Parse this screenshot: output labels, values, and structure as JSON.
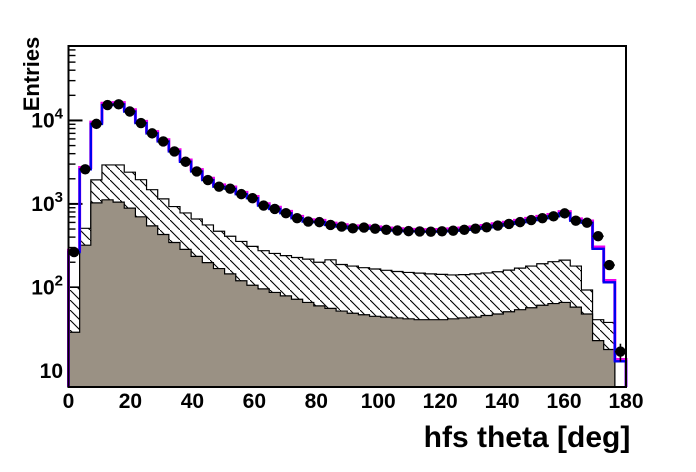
{
  "chart_data": {
    "type": "line",
    "subtype": "step-histogram-with-points-log-y",
    "title": "",
    "xlabel": "hfs theta [deg]",
    "ylabel": "Entries",
    "xaxis": {
      "range": [
        0,
        180
      ],
      "ticks": [
        0,
        20,
        40,
        60,
        80,
        100,
        120,
        140,
        160,
        180
      ]
    },
    "yaxis": {
      "scale": "log",
      "range": [
        6.4,
        78000
      ],
      "major_ticks": [
        10,
        100,
        1000,
        10000
      ]
    },
    "bins": {
      "count": 50,
      "xmin": 0,
      "xmax": 180,
      "width_deg": 3.6
    },
    "legend": "none",
    "background": "#ffffff",
    "series": [
      {
        "name": "data",
        "style": "points",
        "marker": "filled-circle",
        "color": "#000000",
        "errors": "poisson",
        "values": [
          265,
          2600,
          9100,
          15300,
          15600,
          12800,
          9300,
          7000,
          5600,
          4250,
          3200,
          2450,
          1930,
          1610,
          1520,
          1310,
          1170,
          955,
          870,
          775,
          675,
          615,
          605,
          560,
          535,
          510,
          520,
          505,
          490,
          480,
          472,
          468,
          465,
          470,
          478,
          490,
          505,
          525,
          550,
          575,
          605,
          640,
          675,
          710,
          770,
          630,
          595,
          410,
          185,
          17
        ]
      },
      {
        "name": "total-mc",
        "style": "step-line",
        "color": "#0000f0",
        "values": [
          265,
          2600,
          9100,
          15300,
          15600,
          12800,
          9300,
          7000,
          5600,
          4250,
          3200,
          2450,
          1930,
          1610,
          1520,
          1310,
          1170,
          955,
          870,
          775,
          675,
          615,
          605,
          560,
          535,
          510,
          520,
          505,
          490,
          480,
          472,
          468,
          465,
          470,
          478,
          490,
          505,
          525,
          550,
          575,
          605,
          640,
          675,
          710,
          770,
          630,
          595,
          290,
          115,
          13
        ]
      },
      {
        "name": "total-mc-underlay",
        "style": "step-line",
        "color": "#ee00ee",
        "note": "magenta histogram nearly coincident with blue line, peeks out at step edges"
      },
      {
        "name": "background-hatched",
        "style": "filled-step-histogram",
        "fill": "white-with-black-diagonal-hatch",
        "line_color": "#000000",
        "values": [
          100,
          510,
          1940,
          2930,
          2930,
          2400,
          1950,
          1480,
          1150,
          930,
          780,
          660,
          560,
          470,
          410,
          355,
          310,
          275,
          255,
          240,
          228,
          218,
          200,
          214,
          188,
          180,
          172,
          166,
          160,
          155,
          151,
          148,
          145,
          143,
          141,
          142,
          145,
          149,
          154,
          161,
          170,
          180,
          192,
          203,
          212,
          180,
          93,
          41,
          38,
          0
        ]
      },
      {
        "name": "background-solid",
        "style": "filled-step-histogram",
        "fill": "#9a9184",
        "line_color": "#000000",
        "values": [
          29,
          320,
          1030,
          1120,
          1050,
          890,
          700,
          545,
          430,
          345,
          285,
          235,
          198,
          168,
          145,
          120,
          106,
          96,
          87,
          79,
          72,
          66,
          60,
          56,
          52,
          49,
          47,
          45,
          44,
          43,
          42,
          41,
          41,
          41,
          42,
          43,
          44,
          46,
          48,
          51,
          54,
          57,
          61,
          64,
          66,
          58,
          48,
          23,
          18,
          0
        ]
      }
    ]
  }
}
